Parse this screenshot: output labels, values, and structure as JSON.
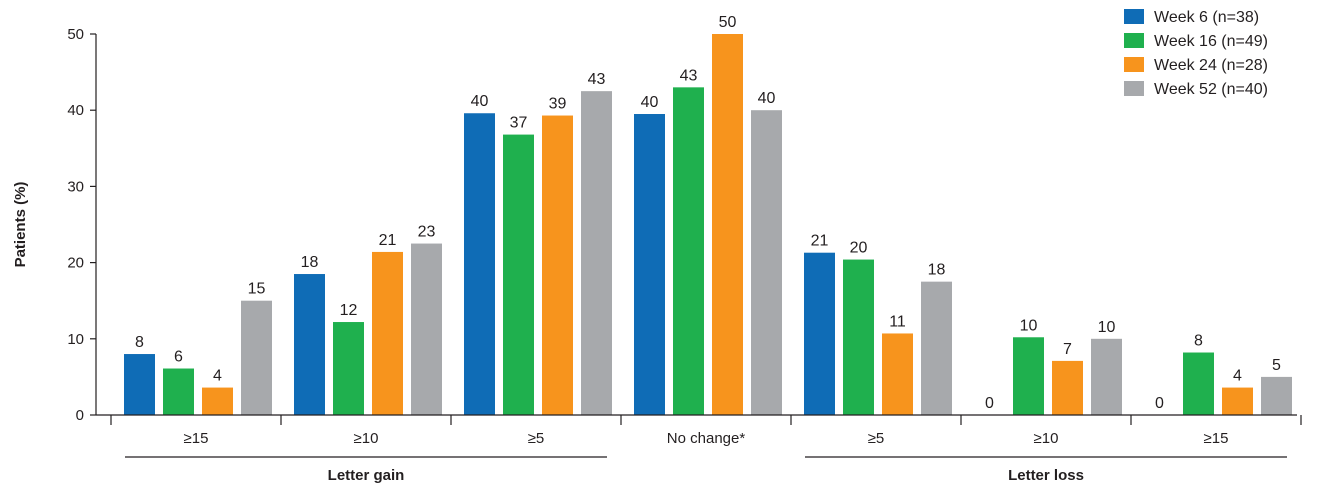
{
  "chart_data": {
    "type": "bar",
    "title": "",
    "xlabel": "",
    "ylabel": "Patients (%)",
    "ylim": [
      0,
      50
    ],
    "yticks": [
      0,
      10,
      20,
      30,
      40,
      50
    ],
    "grid": false,
    "legend_position": "top-right",
    "categories": [
      "≥15",
      "≥10",
      "≥5",
      "No change*",
      "≥5",
      "≥10",
      "≥15"
    ],
    "group_labels": [
      {
        "label": "Letter gain",
        "categories": [
          "≥15",
          "≥10",
          "≥5"
        ]
      },
      {
        "label": "Letter loss",
        "categories": [
          "≥5",
          "≥10",
          "≥15"
        ]
      }
    ],
    "series": [
      {
        "name": "Week 6 (n=38)",
        "color": "#0f6cb6",
        "values": [
          8,
          18,
          40,
          40,
          21,
          0,
          0
        ],
        "heights": [
          8,
          18.5,
          39.6,
          39.5,
          21.3,
          0,
          0
        ]
      },
      {
        "name": "Week 16 (n=49)",
        "color": "#1fb04e",
        "values": [
          6,
          12,
          37,
          43,
          20,
          10,
          8
        ],
        "heights": [
          6.1,
          12.2,
          36.8,
          43,
          20.4,
          10.2,
          8.2
        ]
      },
      {
        "name": "Week 24 (n=28)",
        "color": "#f7941d",
        "values": [
          4,
          21,
          39,
          50,
          11,
          7,
          4
        ],
        "heights": [
          3.6,
          21.4,
          39.3,
          50,
          10.7,
          7.1,
          3.6
        ]
      },
      {
        "name": "Week 52 (n=40)",
        "color": "#a7a9ac",
        "values": [
          15,
          23,
          43,
          40,
          18,
          10,
          5
        ],
        "heights": [
          15,
          22.5,
          42.5,
          40,
          17.5,
          10,
          5
        ]
      }
    ]
  }
}
